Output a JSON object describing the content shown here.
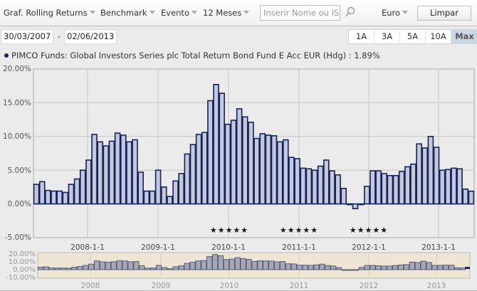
{
  "toolbar": {
    "chart_type": "Graf. Rolling Returns",
    "benchmark": "Benchmark",
    "event": "Evento",
    "period": "12 Meses",
    "search_placeholder": "Inserir Nome ou ISIN",
    "search_visible_text": "Inserir Nome ou IS",
    "currency": "Euro",
    "clear_label": "Limpar"
  },
  "date_range": {
    "start": "30/03/2007",
    "separator": "-",
    "end": "02/06/2013"
  },
  "range_buttons": [
    {
      "label": "1A",
      "active": false
    },
    {
      "label": "3A",
      "active": false
    },
    {
      "label": "5A",
      "active": false
    },
    {
      "label": "10A",
      "active": false
    },
    {
      "label": "Max",
      "active": true
    }
  ],
  "legend": {
    "series_label": "PIMCO Funds: Global Investors Series plc Total Return Bond Fund E Acc EUR (Hdg) : 1.89%",
    "color": "#1a2357"
  },
  "colors": {
    "bar_fill": "#c3c9da",
    "bar_stroke": "#14215a",
    "grid": "#c4c4c4",
    "navigator_bg": "#efe5d4"
  },
  "stars": [
    {
      "label": "★★★★★",
      "x": 322
    },
    {
      "label": "★★★★★",
      "x": 420
    },
    {
      "label": "★★★★★",
      "x": 518
    }
  ],
  "chart_data": {
    "type": "bar",
    "title": "PIMCO Funds: Global Investors Series plc Total Return Bond Fund E Acc EUR (Hdg) - 12 month rolling returns",
    "xlabel": "",
    "ylabel": "",
    "ylim": [
      -5,
      20
    ],
    "yticks": [
      "20.00%",
      "15.00%",
      "10.00%",
      "5.00%",
      "0.00%",
      "-5.00%"
    ],
    "xticks": [
      "2008-1-1",
      "2009-1-1",
      "2010-1-1",
      "2011-1-1",
      "2012-1-1",
      "2013-1-1"
    ],
    "grid": true,
    "legend_position": "top",
    "series": [
      {
        "name": "PIMCO Funds: Global Investors Series plc Total Return Bond Fund E Acc EUR (Hdg)",
        "last_value": "1.89%",
        "start": "2007-04",
        "frequency": "monthly",
        "values": [
          2.9,
          3.3,
          2.0,
          1.9,
          1.9,
          1.7,
          2.9,
          3.7,
          5.0,
          6.5,
          10.3,
          9.2,
          8.6,
          9.3,
          10.5,
          10.2,
          9.2,
          9.5,
          4.7,
          1.9,
          1.9,
          5.0,
          2.5,
          1.1,
          3.4,
          4.5,
          7.4,
          8.8,
          10.3,
          10.6,
          15.3,
          17.7,
          16.4,
          11.8,
          12.4,
          14.1,
          12.9,
          12.1,
          9.7,
          10.4,
          10.2,
          10.1,
          9.2,
          9.5,
          6.9,
          6.7,
          5.3,
          5.2,
          5.0,
          5.6,
          6.5,
          4.9,
          4.3,
          2.3,
          -0.1,
          -0.7,
          0.0,
          2.6,
          4.9,
          4.9,
          4.5,
          4.2,
          4.2,
          4.8,
          5.5,
          5.9,
          8.9,
          8.3,
          10.0,
          8.4,
          5.0,
          5.1,
          5.3,
          5.2,
          2.2,
          1.89
        ]
      }
    ],
    "navigator": {
      "yticks": [
        "20.00%",
        "10.00%",
        "0.00%",
        "-10.00%"
      ],
      "xticks": [
        "2008",
        "2009",
        "2010",
        "2011",
        "2012",
        "2013"
      ]
    },
    "events": [
      {
        "label": "★★★★★",
        "near": "2010-1-1"
      },
      {
        "label": "★★★★★",
        "near": "2011-1-1"
      },
      {
        "label": "★★★★★",
        "near": "2012-1-1"
      }
    ]
  }
}
